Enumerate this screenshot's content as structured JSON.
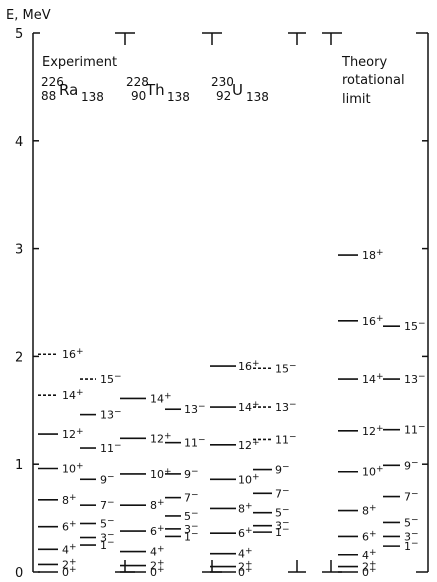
{
  "axis": {
    "label": "E, MeV",
    "ticks": [
      "5",
      "4",
      "3",
      "2",
      "1",
      "0"
    ]
  },
  "headers": {
    "experiment": "Experiment",
    "ra": {
      "mass": "226",
      "z": "88",
      "sym": "Ra",
      "n": "138"
    },
    "th": {
      "mass": "228",
      "z": "90",
      "sym": "Th",
      "n": "138"
    },
    "u": {
      "mass": "230",
      "z": "92",
      "sym": "U",
      "n": "138"
    },
    "theory": [
      "Theory",
      "rotational",
      "limit"
    ]
  },
  "chart_data": {
    "type": "level-scheme",
    "y_unit": "MeV",
    "ylim": [
      0,
      5
    ],
    "columns": [
      {
        "id": "ra226",
        "even": [
          {
            "spin": "0+",
            "e": 0.0
          },
          {
            "spin": "2+",
            "e": 0.07
          },
          {
            "spin": "4+",
            "e": 0.21
          },
          {
            "spin": "6+",
            "e": 0.42
          },
          {
            "spin": "8+",
            "e": 0.67
          },
          {
            "spin": "10+",
            "e": 0.96
          },
          {
            "spin": "12+",
            "e": 1.28
          },
          {
            "spin": "14+",
            "e": 1.64,
            "dashed": true
          },
          {
            "spin": "16+",
            "e": 2.02,
            "dashed": true
          }
        ],
        "odd": [
          {
            "spin": "1−",
            "e": 0.25
          },
          {
            "spin": "3−",
            "e": 0.32
          },
          {
            "spin": "5−",
            "e": 0.45
          },
          {
            "spin": "7−",
            "e": 0.62
          },
          {
            "spin": "9−",
            "e": 0.86
          },
          {
            "spin": "11−",
            "e": 1.15
          },
          {
            "spin": "13−",
            "e": 1.46
          },
          {
            "spin": "15−",
            "e": 1.79,
            "dashed": true
          }
        ]
      },
      {
        "id": "th228",
        "even": [
          {
            "spin": "0+",
            "e": 0.0
          },
          {
            "spin": "2+",
            "e": 0.06
          },
          {
            "spin": "4+",
            "e": 0.19
          },
          {
            "spin": "6+",
            "e": 0.38
          },
          {
            "spin": "8+",
            "e": 0.62
          },
          {
            "spin": "10+",
            "e": 0.91
          },
          {
            "spin": "12+",
            "e": 1.24
          },
          {
            "spin": "14+",
            "e": 1.61
          }
        ],
        "odd": [
          {
            "spin": "1−",
            "e": 0.33
          },
          {
            "spin": "3−",
            "e": 0.4
          },
          {
            "spin": "5−",
            "e": 0.52
          },
          {
            "spin": "7−",
            "e": 0.69
          },
          {
            "spin": "9−",
            "e": 0.91
          },
          {
            "spin": "11−",
            "e": 1.2
          },
          {
            "spin": "13−",
            "e": 1.51
          }
        ]
      },
      {
        "id": "u230",
        "even": [
          {
            "spin": "0+",
            "e": 0.0
          },
          {
            "spin": "2+",
            "e": 0.05
          },
          {
            "spin": "4+",
            "e": 0.17
          },
          {
            "spin": "6+",
            "e": 0.36
          },
          {
            "spin": "8+",
            "e": 0.59
          },
          {
            "spin": "10+",
            "e": 0.86
          },
          {
            "spin": "12+",
            "e": 1.18
          },
          {
            "spin": "14+",
            "e": 1.53
          },
          {
            "spin": "16+",
            "e": 1.91
          }
        ],
        "odd": [
          {
            "spin": "1−",
            "e": 0.37
          },
          {
            "spin": "3−",
            "e": 0.43
          },
          {
            "spin": "5−",
            "e": 0.55
          },
          {
            "spin": "7−",
            "e": 0.73
          },
          {
            "spin": "9−",
            "e": 0.95
          },
          {
            "spin": "11−",
            "e": 1.23,
            "dashed": true
          },
          {
            "spin": "13−",
            "e": 1.53,
            "dashed": true
          },
          {
            "spin": "15−",
            "e": 1.89,
            "dashed": true
          }
        ]
      },
      {
        "id": "theory",
        "even": [
          {
            "spin": "0+",
            "e": 0.0
          },
          {
            "spin": "2+",
            "e": 0.05
          },
          {
            "spin": "4+",
            "e": 0.16
          },
          {
            "spin": "6+",
            "e": 0.33
          },
          {
            "spin": "8+",
            "e": 0.57
          },
          {
            "spin": "10+",
            "e": 0.93
          },
          {
            "spin": "12+",
            "e": 1.31
          },
          {
            "spin": "14+",
            "e": 1.79
          },
          {
            "spin": "16+",
            "e": 2.33
          },
          {
            "spin": "18+",
            "e": 2.94
          }
        ],
        "odd": [
          {
            "spin": "1−",
            "e": 0.24
          },
          {
            "spin": "3−",
            "e": 0.33
          },
          {
            "spin": "5−",
            "e": 0.46
          },
          {
            "spin": "7−",
            "e": 0.7
          },
          {
            "spin": "9−",
            "e": 0.99
          },
          {
            "spin": "11−",
            "e": 1.32
          },
          {
            "spin": "13−",
            "e": 1.79
          },
          {
            "spin": "15−",
            "e": 2.28
          }
        ]
      }
    ]
  }
}
